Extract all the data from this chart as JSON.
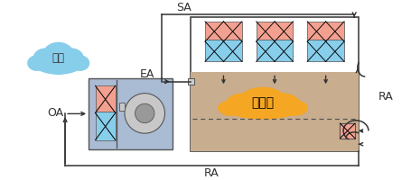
{
  "bg_color": "#ffffff",
  "cloud_外気_color": "#87CEEB",
  "cloud_発ガス_color": "#F5A623",
  "ahu_box_color": "#aabbd4",
  "room_box_color": "#c8ad8f",
  "room_top_color": "#ffffff",
  "room_border_color": "#444444",
  "filter_top_color": "#f4a090",
  "filter_bottom_color": "#87ceeb",
  "exhaust_box_color": "#f4a090",
  "arrow_color": "#333333",
  "label_color": "#222222",
  "labels": {
    "SA": "SA",
    "EA": "EA",
    "OA": "OA",
    "RA": "RA",
    "外気": "外気",
    "発ガス": "発ガス"
  },
  "fig_w": 4.55,
  "fig_h": 2.0,
  "dpi": 100
}
